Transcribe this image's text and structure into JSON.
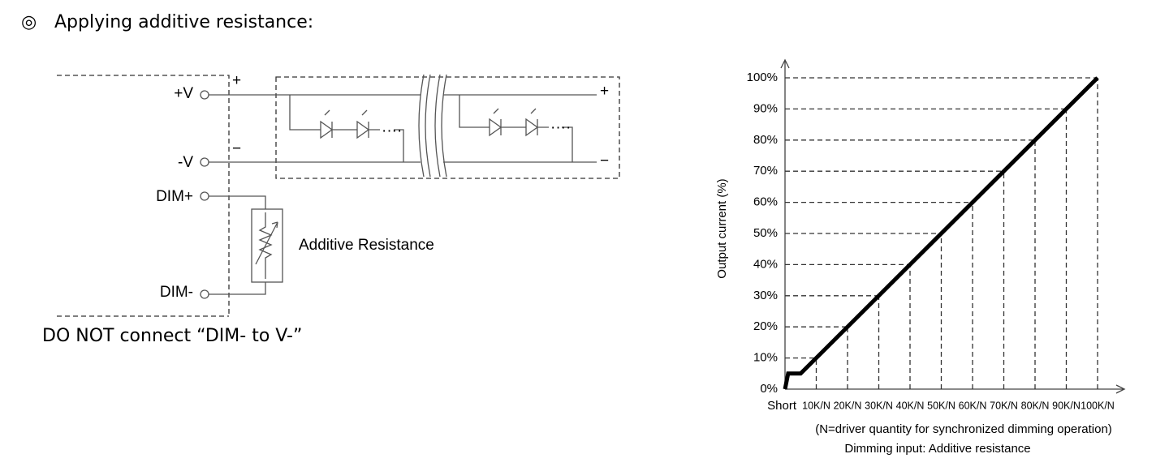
{
  "header": {
    "bullet": "◎",
    "title": "Applying additive resistance:"
  },
  "diagram": {
    "terminals": {
      "plus_v": "+V",
      "minus_v": "-V",
      "dim_plus": "DIM+",
      "dim_minus": "DIM-"
    },
    "resistor": "Additive Resistance",
    "polarity": {
      "in_plus": "+",
      "in_minus": "−",
      "out_plus": "+",
      "out_minus": "−"
    }
  },
  "note": "DO NOT connect “DIM- to V-”",
  "chart_data": {
    "type": "line",
    "y_label": "Output current (%)",
    "x_note": "(N=driver quantity for synchronized dimming operation)",
    "x_label": "Dimming input: Additive resistance",
    "x": [
      0,
      1,
      5,
      100
    ],
    "values": [
      0,
      5,
      5,
      100
    ],
    "color": "#000000",
    "xlim": [
      0,
      100
    ],
    "ylim": [
      0,
      100
    ],
    "xticks": [
      {
        "value": 0,
        "label": "Short"
      },
      {
        "value": 10,
        "label": "10K/N"
      },
      {
        "value": 20,
        "label": "20K/N"
      },
      {
        "value": 30,
        "label": "30K/N"
      },
      {
        "value": 40,
        "label": "40K/N"
      },
      {
        "value": 50,
        "label": "50K/N"
      },
      {
        "value": 60,
        "label": "60K/N"
      },
      {
        "value": 70,
        "label": "70K/N"
      },
      {
        "value": 80,
        "label": "80K/N"
      },
      {
        "value": 90,
        "label": "90K/N"
      },
      {
        "value": 100,
        "label": "100K/N"
      }
    ],
    "yticks": [
      {
        "value": 0,
        "label": "0%"
      },
      {
        "value": 10,
        "label": "10%"
      },
      {
        "value": 20,
        "label": "20%"
      },
      {
        "value": 30,
        "label": "30%"
      },
      {
        "value": 40,
        "label": "40%"
      },
      {
        "value": 50,
        "label": "50%"
      },
      {
        "value": 60,
        "label": "60%"
      },
      {
        "value": 70,
        "label": "70%"
      },
      {
        "value": 80,
        "label": "80%"
      },
      {
        "value": 90,
        "label": "90%"
      },
      {
        "value": 100,
        "label": "100%"
      }
    ],
    "drop_lines": true
  }
}
